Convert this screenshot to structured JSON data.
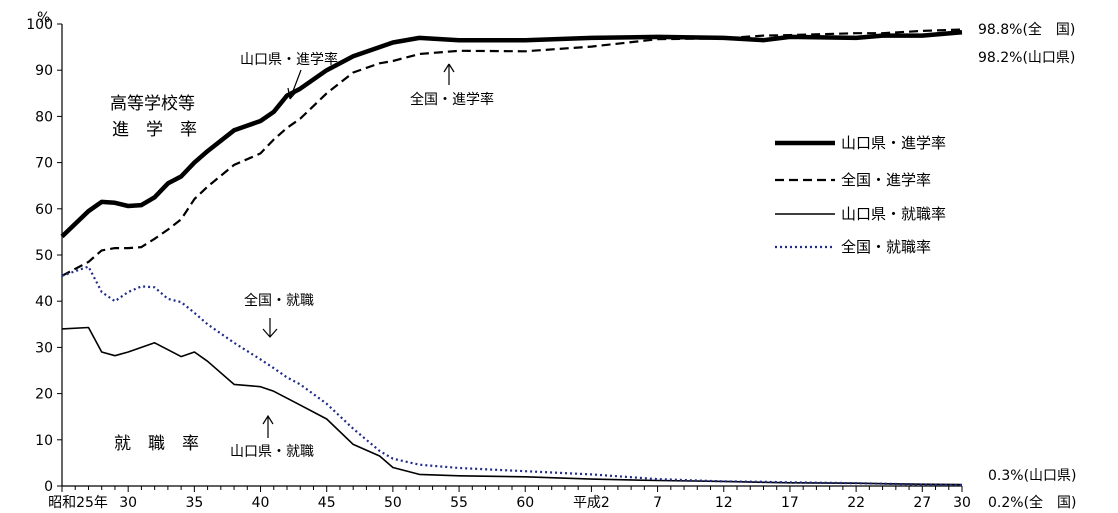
{
  "chart_data": {
    "type": "line",
    "y_unit": "%",
    "ylim": [
      0,
      100
    ],
    "yticks": [
      0,
      10,
      20,
      30,
      40,
      50,
      60,
      70,
      80,
      90,
      100
    ],
    "ytick_labels": [
      "0",
      "10",
      "20",
      "30",
      "40",
      "50",
      "60",
      "70",
      "80",
      "90",
      "100"
    ],
    "x_start_year": 1950,
    "x_end_year": 2018,
    "xtick_labels": [
      {
        "year": 1950,
        "label": "昭和25年"
      },
      {
        "year": 1955,
        "label": "30"
      },
      {
        "year": 1960,
        "label": "35"
      },
      {
        "year": 1965,
        "label": "40"
      },
      {
        "year": 1970,
        "label": "45"
      },
      {
        "year": 1975,
        "label": "50"
      },
      {
        "year": 1980,
        "label": "55"
      },
      {
        "year": 1985,
        "label": "60"
      },
      {
        "year": 1990,
        "label": "平成2"
      },
      {
        "year": 1995,
        "label": "7"
      },
      {
        "year": 2000,
        "label": "12"
      },
      {
        "year": 2005,
        "label": "17"
      },
      {
        "year": 2010,
        "label": "22"
      },
      {
        "year": 2015,
        "label": "27"
      },
      {
        "year": 2018,
        "label": "30"
      }
    ],
    "x": [
      1950,
      1952,
      1953,
      1954,
      1955,
      1956,
      1957,
      1958,
      1959,
      1960,
      1961,
      1963,
      1965,
      1966,
      1967,
      1968,
      1970,
      1972,
      1974,
      1975,
      1977,
      1980,
      1985,
      1990,
      1995,
      2000,
      2003,
      2005,
      2010,
      2012,
      2015,
      2018
    ],
    "series": [
      {
        "name": "山口県・進学率",
        "style": "thick-solid",
        "color": "#000000",
        "values": [
          54,
          59.5,
          61.5,
          61.3,
          60.6,
          60.8,
          62.5,
          65.5,
          67,
          70,
          72.5,
          77,
          79,
          81,
          84.5,
          86,
          90,
          93,
          95,
          96,
          97,
          96.5,
          96.5,
          97,
          97.2,
          97,
          96.5,
          97.2,
          97,
          97.5,
          97.5,
          98.2
        ]
      },
      {
        "name": "全国・進学率",
        "style": "dashed",
        "color": "#000000",
        "values": [
          45.5,
          48.5,
          51,
          51.5,
          51.5,
          51.7,
          53.5,
          55.5,
          57.7,
          62.1,
          64.8,
          69.5,
          72,
          75,
          77.5,
          79.5,
          85,
          89.5,
          91.5,
          92,
          93.5,
          94.2,
          94.1,
          95.1,
          96.7,
          96.9,
          97.5,
          97.6,
          98,
          98,
          98.5,
          98.8
        ]
      },
      {
        "name": "山口県・就職率",
        "style": "thin-solid",
        "color": "#000000",
        "values": [
          34,
          34.3,
          29,
          28.2,
          29,
          30,
          31,
          29.5,
          28,
          29,
          27,
          22,
          21.5,
          20.5,
          19,
          17.5,
          14.5,
          9,
          6.5,
          4,
          2.5,
          2.2,
          2,
          1.5,
          1.2,
          1,
          0.8,
          0.7,
          0.6,
          0.5,
          0.4,
          0.3
        ]
      },
      {
        "name": "全国・就職率",
        "style": "dotted",
        "color": "#1f2a8a",
        "values": [
          45.5,
          47.5,
          42,
          40,
          42,
          43.2,
          43,
          40.5,
          39.8,
          37.5,
          35,
          31,
          27.4,
          25.5,
          23.5,
          22,
          17.8,
          12.4,
          7.6,
          5.9,
          4.6,
          3.9,
          3.2,
          2.5,
          1.5,
          1,
          0.9,
          0.8,
          0.6,
          0.5,
          0.3,
          0.2
        ]
      }
    ],
    "legend_placement": "right-middle",
    "grid": false
  },
  "annotations": {
    "y_unit_label": "%",
    "label_koutou": "高等学校等",
    "label_shingakuritsu": "進　学　率",
    "label_shushokuritsu": "就　職　率",
    "arrow_yama_shingaku": "山口県・進学率",
    "arrow_zenkoku_shingaku": "全国・進学率",
    "arrow_zenkoku_shushoku": "全国・就職",
    "arrow_yama_shushoku": "山口県・就職",
    "end_value_1": "98.8%(全　国)",
    "end_value_2": "98.2%(山口県)",
    "end_value_3": "0.3%(山口県)",
    "end_value_4": "0.2%(全　国)"
  }
}
